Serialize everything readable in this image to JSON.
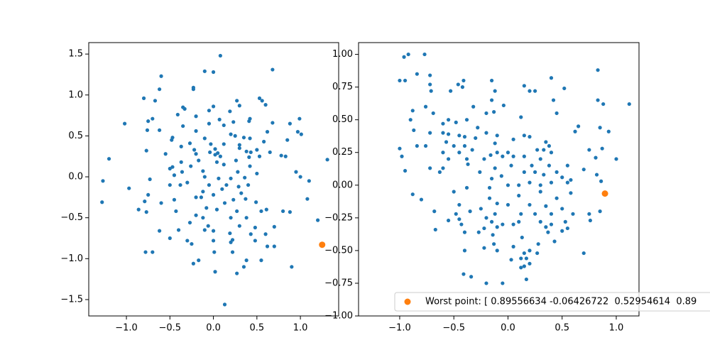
{
  "chart_data": [
    {
      "type": "scatter",
      "xlim": [
        -1.433,
        1.44
      ],
      "ylim": [
        -1.7,
        1.64
      ],
      "xticks": [
        {
          "value": -1,
          "label": "−1.0"
        },
        {
          "value": -0.5,
          "label": "−0.5"
        },
        {
          "value": 0,
          "label": "0.0"
        },
        {
          "value": 0.5,
          "label": "0.5"
        },
        {
          "value": 1,
          "label": "1.0"
        }
      ],
      "yticks": [
        {
          "value": -1.5,
          "label": "−1.5"
        },
        {
          "value": -1,
          "label": "−1.0"
        },
        {
          "value": -0.5,
          "label": "−0.5"
        },
        {
          "value": 0,
          "label": "0.0"
        },
        {
          "value": 0.5,
          "label": "0.5"
        },
        {
          "value": 1,
          "label": "1.0"
        },
        {
          "value": 1.5,
          "label": "1.5"
        }
      ],
      "series": [
        {
          "color": "#1f77b4",
          "x": [
            0.08,
            0.68,
            -0.1,
            0.0,
            -0.6,
            -0.23,
            -0.23,
            -0.62,
            -0.8,
            -0.67,
            0.53,
            0.56,
            0.6,
            0.27,
            0.3,
            0.0,
            0.19,
            -0.35,
            -0.33,
            -0.05,
            -0.41,
            -0.7,
            -0.75,
            -0.2,
            0.07,
            0.23,
            0.42,
            0.41,
            0.99,
            -1.02,
            -0.05,
            -0.35,
            0.12,
            0.68,
            0.88,
            -0.76,
            -0.62,
            -0.2,
            0.2,
            0.25,
            0.35,
            0.62,
            0.97,
            1.01,
            -0.47,
            -0.48,
            -0.1,
            0.42,
            0.58,
            0.85,
            -0.27,
            -0.37,
            -0.03,
            0.12,
            0.3,
            0.5,
            0.02,
            -0.77,
            -0.22,
            0.3,
            0.38,
            0.43,
            0.65,
            -0.55,
            -0.2,
            -0.04,
            0.02,
            0.05,
            0.08,
            0.41,
            0.53,
            0.78,
            0.83,
            1.31,
            -1.2,
            -0.37,
            -0.17,
            0.04,
            0.26,
            0.12,
            -0.47,
            -0.5,
            -0.26,
            0.42,
            -0.36,
            -0.12,
            0.28,
            0.5,
            0.95,
            -1.27,
            -0.73,
            -0.45,
            -0.1,
            0.06,
            0.2,
            0.36,
            1.0,
            1.1,
            -0.5,
            -0.38,
            -0.3,
            -0.05,
            0.15,
            0.29,
            0.4,
            -0.97,
            -0.12,
            0.1,
            0.32,
            1.08,
            -0.75,
            -0.79,
            -0.2,
            -0.14,
            0.0,
            0.23,
            0.37,
            -1.28,
            -0.45,
            -0.6,
            0.13,
            0.49,
            -0.86,
            -0.77,
            -0.43,
            -0.08,
            0.04,
            0.27,
            0.55,
            0.61,
            0.8,
            0.88,
            -0.2,
            -0.12,
            0.2,
            0.38,
            1.2,
            -0.27,
            -0.06,
            0.3,
            0.48,
            0.7,
            -0.62,
            -0.4,
            -0.1,
            0.0,
            0.19,
            0.43,
            0.6,
            -0.5,
            -0.3,
            0.0,
            0.22,
            0.48,
            -0.25,
            0.2,
            0.62,
            0.7,
            -0.78,
            -0.7,
            0.01,
            0.22,
            -0.23,
            -0.17,
            0.38,
            0.55,
            0.35,
            0.9,
            0.02,
            0.27,
            0.13
          ],
          "values": [
            1.48,
            1.31,
            1.29,
            1.28,
            1.23,
            1.09,
            1.07,
            1.07,
            0.96,
            0.93,
            0.96,
            0.93,
            0.88,
            0.93,
            0.87,
            0.86,
            0.8,
            0.85,
            0.83,
            0.81,
            0.76,
            0.71,
            0.68,
            0.74,
            0.7,
            0.67,
            0.71,
            0.68,
            0.71,
            0.65,
            0.65,
            0.62,
            0.63,
            0.66,
            0.65,
            0.57,
            0.57,
            0.56,
            0.52,
            0.5,
            0.48,
            0.55,
            0.55,
            0.52,
            0.48,
            0.45,
            0.47,
            0.47,
            0.43,
            0.45,
            0.41,
            0.37,
            0.4,
            0.4,
            0.39,
            0.33,
            0.34,
            0.32,
            0.33,
            0.35,
            0.31,
            0.3,
            0.3,
            0.28,
            0.28,
            0.3,
            0.27,
            0.29,
            0.25,
            0.24,
            0.25,
            0.26,
            0.25,
            0.21,
            0.22,
            0.18,
            0.2,
            0.18,
            0.2,
            0.15,
            0.12,
            0.1,
            0.13,
            0.13,
            0.06,
            0.07,
            0.06,
            0.04,
            0.06,
            -0.05,
            -0.03,
            0.02,
            0.0,
            -0.02,
            -0.02,
            -0.01,
            0.0,
            -0.05,
            -0.1,
            -0.1,
            -0.07,
            -0.1,
            -0.1,
            -0.12,
            -0.1,
            -0.14,
            -0.18,
            -0.15,
            -0.2,
            -0.27,
            -0.22,
            -0.3,
            -0.25,
            -0.25,
            -0.22,
            -0.28,
            -0.27,
            -0.31,
            -0.28,
            -0.32,
            -0.32,
            -0.31,
            -0.4,
            -0.43,
            -0.42,
            -0.38,
            -0.4,
            -0.42,
            -0.42,
            -0.4,
            -0.42,
            -0.43,
            -0.47,
            -0.5,
            -0.5,
            -0.5,
            -0.53,
            -0.56,
            -0.6,
            -0.6,
            -0.62,
            -0.61,
            -0.66,
            -0.65,
            -0.65,
            -0.66,
            -0.69,
            -0.7,
            -0.7,
            -0.75,
            -0.78,
            -0.78,
            -0.77,
            -0.78,
            -0.82,
            -0.8,
            -0.85,
            -0.85,
            -0.92,
            -0.92,
            -0.92,
            -0.92,
            -1.06,
            -1.02,
            -1.02,
            -1.02,
            -1.1,
            -1.1,
            -1.16,
            -1.18,
            -1.56
          ]
        },
        {
          "color": "#ff7f0e",
          "x": [
            1.25
          ],
          "values": [
            -0.83
          ]
        }
      ]
    },
    {
      "type": "scatter",
      "xlim": [
        -1.38,
        1.21
      ],
      "ylim": [
        -1.0,
        1.09
      ],
      "xticks": [
        {
          "value": -1,
          "label": "−1.0"
        },
        {
          "value": -0.5,
          "label": "−0.5"
        },
        {
          "value": 0,
          "label": "0.0"
        },
        {
          "value": 0.5,
          "label": "0.5"
        },
        {
          "value": 1,
          "label": "1.0"
        }
      ],
      "yticks": [
        {
          "value": -1,
          "label": "−1.00"
        },
        {
          "value": -0.75,
          "label": "−0.75"
        },
        {
          "value": -0.5,
          "label": "−0.50"
        },
        {
          "value": -0.25,
          "label": "−0.25"
        },
        {
          "value": 0,
          "label": "0.00"
        },
        {
          "value": 0.25,
          "label": "0.25"
        },
        {
          "value": 0.5,
          "label": "0.50"
        },
        {
          "value": 0.75,
          "label": "0.75"
        },
        {
          "value": 1,
          "label": "1.00"
        }
      ],
      "series": [
        {
          "color": "#1f77b4",
          "x": [
            -0.92,
            -0.96,
            -0.77,
            0.83,
            -0.84,
            -0.72,
            0.4,
            -1.0,
            -0.95,
            -0.41,
            -0.72,
            -0.46,
            -0.15,
            0.15,
            -0.71,
            -0.53,
            -0.42,
            -0.12,
            0.2,
            0.25,
            0.52,
            -0.15,
            0.83,
            0.42,
            -0.04,
            0.88,
            1.12,
            -0.88,
            -0.76,
            -0.69,
            -0.32,
            -0.2,
            -0.13,
            0.45,
            0.12,
            -0.55,
            -0.48,
            -0.38,
            -0.9,
            -0.6,
            -0.87,
            -0.72,
            -0.28,
            0.65,
            0.62,
            0.85,
            0.93,
            -0.84,
            -0.76,
            -0.6,
            -0.55,
            -0.45,
            -0.4,
            -0.57,
            -0.5,
            -0.4,
            -0.3,
            -0.2,
            -0.1,
            0.15,
            0.2,
            0.35,
            0.38,
            -1.0,
            -0.6,
            -0.45,
            -0.33,
            -0.12,
            0.05,
            0.27,
            0.33,
            -0.55,
            -0.38,
            -0.22,
            -0.16,
            -0.1,
            -0.05,
            0.0,
            0.05,
            0.15,
            0.3,
            0.4,
            0.75,
            0.87,
            0.81,
            1.0,
            -0.6,
            -0.63,
            -0.37,
            -0.12,
            0.03,
            0.22,
            0.38,
            0.45,
            0.55,
            -0.98,
            -0.95,
            -0.72,
            -0.26,
            -0.15,
            -0.06,
            0.15,
            0.25,
            0.33,
            0.5,
            0.58,
            0.7,
            0.82,
            0.86,
            -0.17,
            0.0,
            0.1,
            0.2,
            0.3,
            0.4,
            0.55,
            -0.88,
            -0.8,
            -0.5,
            -0.38,
            -0.17,
            0.1,
            0.3,
            0.45,
            0.58,
            -0.45,
            -0.25,
            -0.1,
            0.0,
            0.2,
            0.35,
            0.5,
            -0.68,
            -0.48,
            -0.35,
            -0.2,
            -0.12,
            0.12,
            0.25,
            0.4,
            0.6,
            0.75,
            0.85,
            -0.55,
            -0.45,
            -0.15,
            -0.05,
            0.1,
            0.3,
            0.4,
            0.53,
            0.76,
            -0.67,
            -0.43,
            -0.22,
            -0.1,
            0.05,
            0.35,
            0.5,
            0.55,
            -0.4,
            -0.27,
            -0.14,
            0.13,
            0.37,
            0.43,
            -0.13,
            0.05,
            0.28,
            -0.4,
            -0.22,
            -0.1,
            0.15,
            0.2,
            0.27,
            0.7,
            0.03,
            0.12,
            0.17,
            0.15,
            0.12,
            0.2,
            -0.41,
            -0.34,
            0.17,
            -0.2,
            -0.05
          ],
          "values": [
            1.0,
            0.98,
            1.0,
            0.88,
            0.85,
            0.84,
            0.82,
            0.8,
            0.8,
            0.8,
            0.77,
            0.77,
            0.8,
            0.76,
            0.72,
            0.72,
            0.75,
            0.72,
            0.72,
            0.72,
            0.74,
            0.65,
            0.65,
            0.65,
            0.61,
            0.62,
            0.62,
            0.57,
            0.6,
            0.55,
            0.6,
            0.55,
            0.56,
            0.55,
            0.52,
            0.5,
            0.48,
            0.5,
            0.5,
            0.47,
            0.42,
            0.4,
            0.44,
            0.45,
            0.41,
            0.44,
            0.41,
            0.3,
            0.3,
            0.4,
            0.39,
            0.38,
            0.37,
            0.33,
            0.3,
            0.3,
            0.36,
            0.4,
            0.38,
            0.38,
            0.37,
            0.33,
            0.3,
            0.28,
            0.25,
            0.25,
            0.27,
            0.32,
            0.35,
            0.27,
            0.27,
            0.2,
            0.2,
            0.2,
            0.23,
            0.25,
            0.22,
            0.25,
            0.22,
            0.22,
            0.2,
            0.25,
            0.27,
            0.28,
            0.21,
            0.2,
            0.13,
            0.1,
            0.16,
            0.13,
            0.15,
            0.15,
            0.15,
            0.1,
            0.15,
            0.22,
            0.11,
            0.13,
            0.1,
            0.05,
            0.07,
            0.1,
            0.1,
            0.08,
            0.06,
            0.04,
            0.12,
            0.08,
            0.03,
            -0.02,
            0.0,
            0.0,
            0.02,
            0.0,
            0.02,
            0.02,
            -0.07,
            -0.11,
            -0.05,
            -0.02,
            -0.1,
            -0.08,
            -0.05,
            -0.1,
            -0.06,
            -0.15,
            -0.18,
            -0.14,
            -0.15,
            -0.15,
            -0.16,
            -0.18,
            -0.2,
            -0.22,
            -0.2,
            -0.25,
            -0.22,
            -0.22,
            -0.22,
            -0.22,
            -0.22,
            -0.22,
            -0.2,
            -0.27,
            -0.26,
            -0.28,
            -0.3,
            -0.28,
            -0.28,
            -0.3,
            -0.28,
            -0.27,
            -0.34,
            -0.3,
            -0.33,
            -0.32,
            -0.3,
            -0.32,
            -0.35,
            -0.33,
            -0.36,
            -0.36,
            -0.38,
            -0.4,
            -0.36,
            -0.43,
            -0.45,
            -0.47,
            -0.45,
            -0.5,
            -0.48,
            -0.5,
            -0.52,
            -0.5,
            -0.52,
            -0.52,
            -0.57,
            -0.56,
            -0.56,
            -0.62,
            -0.63,
            -0.6,
            -0.68,
            -0.7,
            -0.72,
            -0.75,
            -0.75
          ]
        },
        {
          "name": "Worst point: [ 0.89556634 -0.06426722  0.52954614  0.89",
          "color": "#ff7f0e",
          "x": [
            0.89556634
          ],
          "values": [
            -0.06426722
          ]
        }
      ]
    }
  ]
}
